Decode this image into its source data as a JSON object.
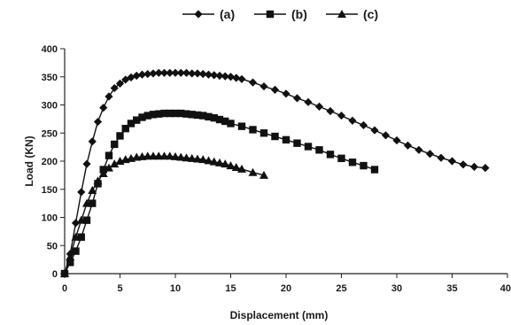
{
  "chart_data": {
    "type": "line",
    "title": "",
    "xlabel": "Displacement (mm)",
    "ylabel": "Load (KN)",
    "xlim": [
      0,
      40
    ],
    "ylim": [
      0,
      400
    ],
    "xticks": [
      0,
      5,
      10,
      15,
      20,
      25,
      30,
      35,
      40
    ],
    "yticks": [
      0,
      50,
      100,
      150,
      200,
      250,
      300,
      350,
      400
    ],
    "xtick_labels": [
      "0",
      "5",
      "10",
      "15",
      "20",
      "25",
      "30",
      "35",
      "40"
    ],
    "ytick_labels": [
      "0",
      "50",
      "100",
      "150",
      "200",
      "250",
      "300",
      "350",
      "400"
    ],
    "grid": false,
    "legend_position": "top-center",
    "colors": {
      "series": "#111111",
      "axis": "#222222"
    },
    "series": [
      {
        "name": "(a)",
        "marker": "diamond",
        "x": [
          0,
          0.5,
          1,
          1.5,
          2,
          2.5,
          3,
          3.5,
          4,
          4.5,
          5,
          5.5,
          6,
          6.5,
          7,
          7.5,
          8,
          8.5,
          9,
          9.5,
          10,
          10.5,
          11,
          11.5,
          12,
          12.5,
          13,
          13.5,
          14,
          14.5,
          15,
          15.5,
          16,
          17,
          18,
          19,
          20,
          21,
          22,
          23,
          24,
          25,
          26,
          27,
          28,
          29,
          30,
          31,
          32,
          33,
          34,
          35,
          36,
          37,
          38
        ],
        "y": [
          0,
          35,
          90,
          145,
          195,
          235,
          270,
          295,
          315,
          330,
          338,
          345,
          349,
          352,
          354,
          355,
          356,
          357,
          357,
          357,
          357,
          357,
          357,
          356,
          356,
          355,
          354,
          353,
          352,
          351,
          350,
          348,
          346,
          340,
          333,
          327,
          320,
          312,
          305,
          297,
          289,
          281,
          272,
          264,
          255,
          246,
          237,
          228,
          220,
          213,
          206,
          200,
          194,
          190,
          188
        ]
      },
      {
        "name": "(b)",
        "marker": "square",
        "x": [
          0,
          0.5,
          1,
          1.5,
          2,
          2.5,
          3,
          3.5,
          4,
          4.5,
          5,
          5.5,
          6,
          6.5,
          7,
          7.5,
          8,
          8.5,
          9,
          9.5,
          10,
          10.5,
          11,
          11.5,
          12,
          12.5,
          13,
          13.5,
          14,
          14.5,
          15,
          16,
          17,
          18,
          19,
          20,
          21,
          22,
          23,
          24,
          25,
          26,
          27,
          28
        ],
        "y": [
          0,
          20,
          40,
          65,
          95,
          125,
          160,
          185,
          210,
          230,
          245,
          258,
          267,
          273,
          278,
          281,
          283,
          284,
          285,
          285,
          285,
          285,
          284,
          283,
          282,
          281,
          279,
          277,
          274,
          271,
          267,
          262,
          256,
          250,
          244,
          238,
          232,
          226,
          220,
          212,
          205,
          198,
          192,
          185
        ]
      },
      {
        "name": "(c)",
        "marker": "triangle",
        "x": [
          0,
          0.5,
          1,
          1.5,
          2,
          2.5,
          3,
          3.5,
          4,
          4.5,
          5,
          5.5,
          6,
          6.5,
          7,
          7.5,
          8,
          8.5,
          9,
          9.5,
          10,
          10.5,
          11,
          11.5,
          12,
          12.5,
          13,
          13.5,
          14,
          14.5,
          15,
          15.5,
          16,
          17,
          18
        ],
        "y": [
          0,
          30,
          65,
          95,
          125,
          148,
          165,
          178,
          188,
          195,
          200,
          203,
          205,
          207,
          208,
          209,
          209,
          209,
          209,
          209,
          208,
          207,
          206,
          205,
          204,
          203,
          201,
          199,
          197,
          195,
          192,
          189,
          186,
          180,
          175
        ]
      }
    ]
  }
}
